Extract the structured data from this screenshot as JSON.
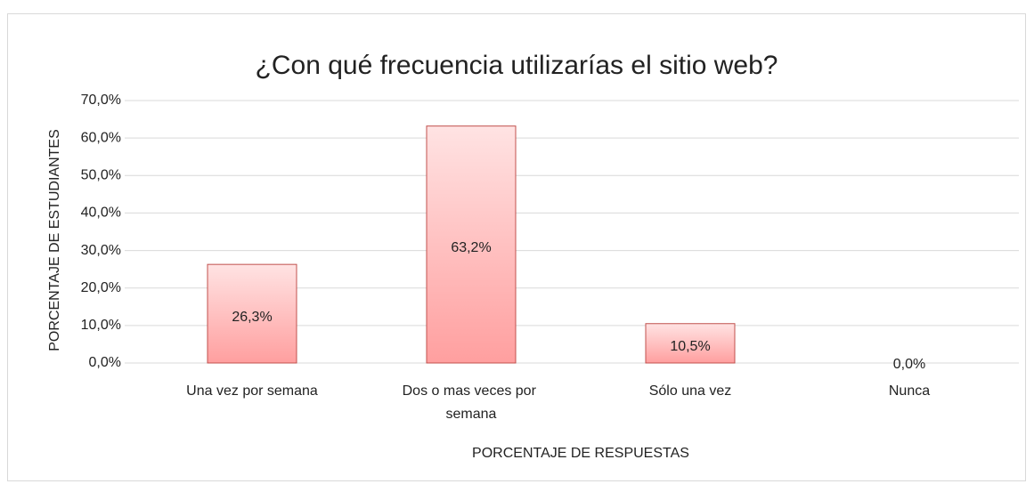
{
  "chart_data": {
    "type": "bar",
    "title": "¿Con qué frecuencia utilizarías el sitio web?",
    "xlabel": "PORCENTAJE DE RESPUESTAS",
    "ylabel": "PORCENTAJE DE ESTUDIANTES",
    "categories": [
      "Una vez por semana",
      "Dos o mas veces por semana",
      "Sólo una vez",
      "Nunca"
    ],
    "values": [
      26.3,
      63.2,
      10.5,
      0
    ],
    "value_labels": [
      "26,3%",
      "63,2%",
      "10,5%",
      "0,0%"
    ],
    "color": "#ff9f9f",
    "ylim": [
      0,
      70
    ],
    "yticks": [
      {
        "value": 0,
        "label": "0,0%"
      },
      {
        "value": 10,
        "label": "10,0%"
      },
      {
        "value": 20,
        "label": "20,0%"
      },
      {
        "value": 30,
        "label": "30,0%"
      },
      {
        "value": 40,
        "label": "40,0%"
      },
      {
        "value": 50,
        "label": "50,0%"
      },
      {
        "value": 60,
        "label": "60,0%"
      },
      {
        "value": 70,
        "label": "70,0%"
      }
    ],
    "grid": true
  }
}
